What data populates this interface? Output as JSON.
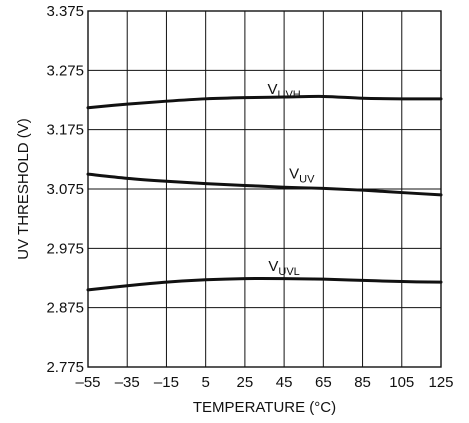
{
  "chart_data": {
    "type": "line",
    "xlabel": "TEMPERATURE (°C)",
    "ylabel": "UV THRESHOLD (V)",
    "xlim": [
      -55,
      125
    ],
    "ylim": [
      2.775,
      3.375
    ],
    "grid": true,
    "x_ticks": [
      -55,
      -35,
      -15,
      5,
      25,
      45,
      65,
      85,
      105,
      125
    ],
    "x_tick_labels": [
      "–55",
      "–35",
      "–15",
      "5",
      "25",
      "45",
      "65",
      "85",
      "105",
      "125"
    ],
    "y_ticks": [
      2.775,
      2.875,
      2.975,
      3.075,
      3.175,
      3.275,
      3.375
    ],
    "y_tick_labels": [
      "2.775",
      "2.875",
      "2.975",
      "3.075",
      "3.175",
      "3.275",
      "3.375"
    ],
    "x": [
      -55,
      -35,
      -15,
      5,
      25,
      45,
      65,
      85,
      105,
      125
    ],
    "series": [
      {
        "name": "VUVH",
        "label_main": "V",
        "label_sub": "UVH",
        "label_at": [
          45,
          3.235
        ],
        "values": [
          3.212,
          3.218,
          3.223,
          3.227,
          3.229,
          3.23,
          3.231,
          3.228,
          3.227,
          3.227
        ]
      },
      {
        "name": "VUV",
        "label_main": "V",
        "label_sub": "UV",
        "label_at": [
          54,
          3.093
        ],
        "values": [
          3.1,
          3.093,
          3.088,
          3.084,
          3.081,
          3.078,
          3.076,
          3.073,
          3.069,
          3.065
        ]
      },
      {
        "name": "VUVL",
        "label_main": "V",
        "label_sub": "UVL",
        "label_at": [
          45,
          2.937
        ],
        "values": [
          2.905,
          2.912,
          2.918,
          2.922,
          2.924,
          2.924,
          2.923,
          2.921,
          2.919,
          2.918
        ]
      }
    ]
  }
}
